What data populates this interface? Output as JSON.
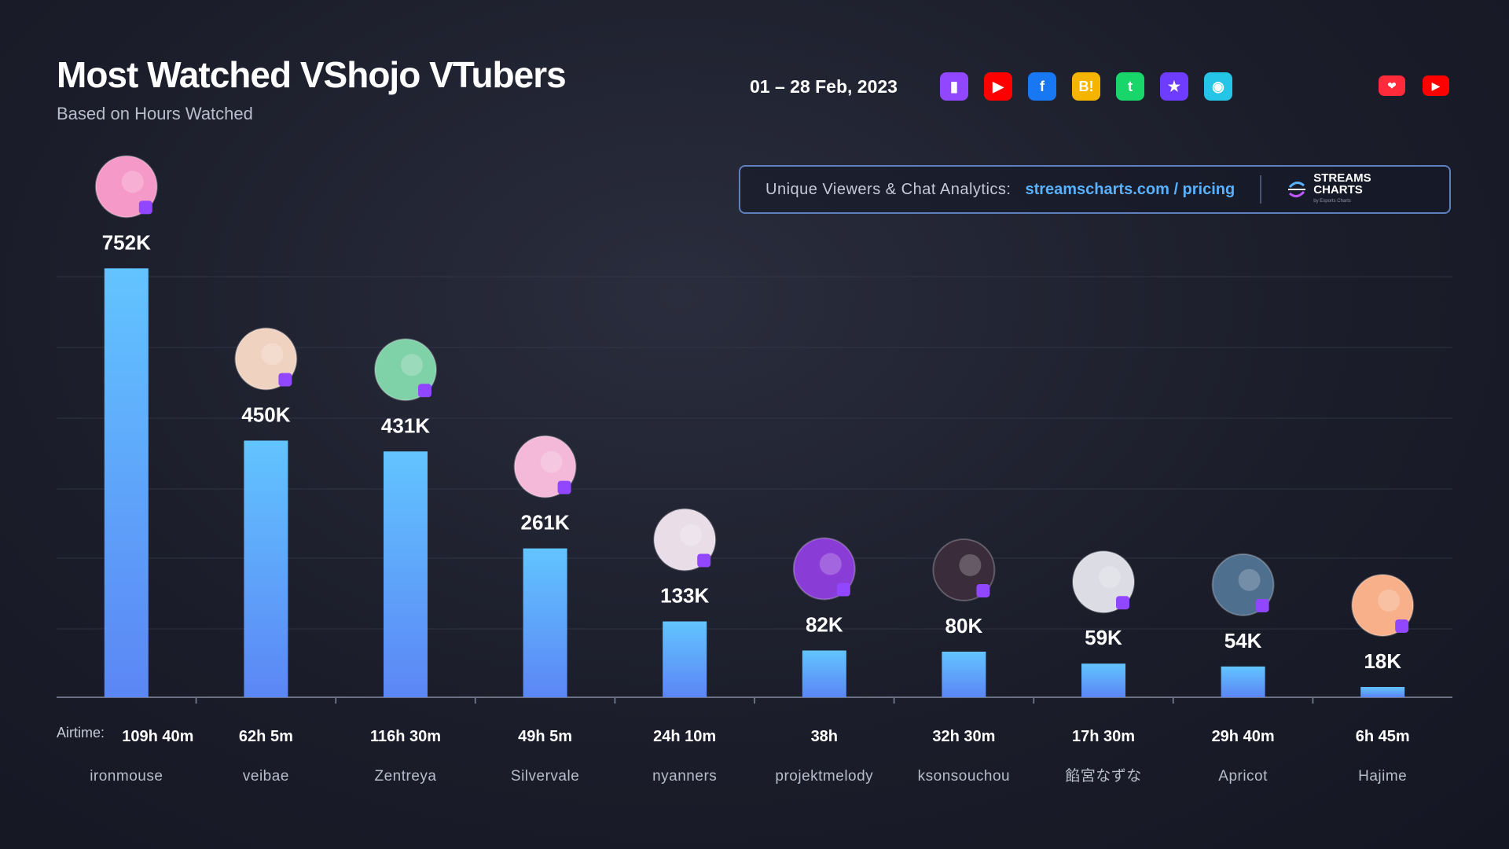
{
  "header": {
    "title": "Most Watched VShojo VTubers",
    "subtitle": "Based on Hours Watched",
    "date_range": "01 – 28 Feb, 2023"
  },
  "platform_icons": [
    {
      "name": "twitch-icon",
      "color": "#9146ff",
      "glyph": "▮"
    },
    {
      "name": "youtube-icon",
      "color": "#ff0000",
      "glyph": "▶"
    },
    {
      "name": "facebook-icon",
      "color": "#1877f2",
      "glyph": "f"
    },
    {
      "name": "booyah-icon",
      "color": "#f5b400",
      "glyph": "B!"
    },
    {
      "name": "trovo-icon",
      "color": "#19d66b",
      "glyph": "t"
    },
    {
      "name": "kick-like-icon",
      "color": "#6e3cff",
      "glyph": "★"
    },
    {
      "name": "bigo-icon",
      "color": "#25c5e8",
      "glyph": "◉"
    }
  ],
  "social_icons": [
    {
      "name": "heart-icon",
      "color": "#ff2a3a",
      "glyph": "❤"
    },
    {
      "name": "youtube-icon",
      "color": "#ff0000",
      "glyph": "▶"
    }
  ],
  "promo": {
    "label": "Unique Viewers & Chat Analytics:",
    "link": "streamscharts.com / pricing",
    "logo_line1": "STREAMS",
    "logo_line2": "CHARTS",
    "logo_sub": "by Esports Charts"
  },
  "colors": {
    "bar_top": "#62c4ff",
    "bar_bottom": "#5b86f5",
    "grid": "#34384a",
    "axis": "#6a6f82",
    "twitch_badge": "#9146ff"
  },
  "chart_data": {
    "type": "bar",
    "title": "Most Watched VShojo VTubers",
    "subtitle": "Based on Hours Watched",
    "ylim": [
      0,
      800000
    ],
    "airtime_label": "Airtime:",
    "categories": [
      "ironmouse",
      "veibae",
      "Zentreya",
      "Silvervale",
      "nyanners",
      "projektmelody",
      "ksonsouchou",
      "餡宮なずな",
      "Apricot",
      "Hajime"
    ],
    "values": [
      752000,
      450000,
      431000,
      261000,
      133000,
      82000,
      80000,
      59000,
      54000,
      18000
    ],
    "value_labels": [
      "752K",
      "450K",
      "431K",
      "261K",
      "133K",
      "82K",
      "80K",
      "59K",
      "54K",
      "18K"
    ],
    "airtime": [
      "109h 40m",
      "62h 5m",
      "116h 30m",
      "49h 5m",
      "24h 10m",
      "38h",
      "32h 30m",
      "17h 30m",
      "29h 40m",
      "6h 45m"
    ],
    "avatar_colors": [
      "#f59ac8",
      "#f0d2c0",
      "#7fd1a8",
      "#f4b8d8",
      "#e9dde8",
      "#8a3cd6",
      "#3a2c3a",
      "#dcdce4",
      "#4f6f8f",
      "#f7b08a"
    ]
  }
}
